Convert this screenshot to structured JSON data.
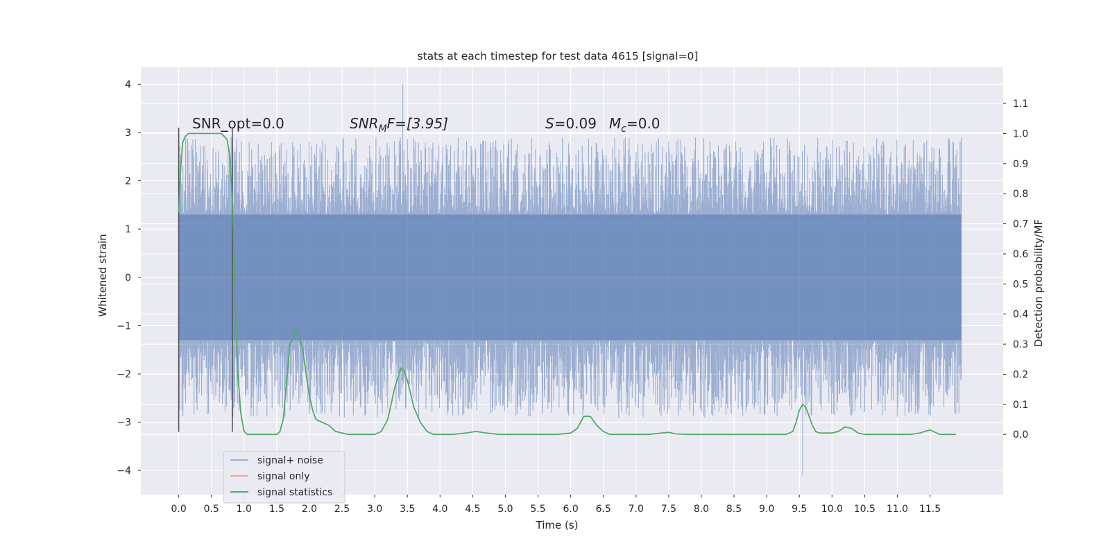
{
  "chart_data": {
    "type": "line",
    "title": "stats at each timestep for test data 4615 [signal=0]",
    "xlabel": "Time (s)",
    "ylabel": "Whitened strain",
    "y2label": "Detection probability/MF",
    "xlim": [
      -0.58,
      12.62
    ],
    "ylim": [
      -4.5,
      4.35
    ],
    "y2lim": [
      -0.2,
      1.22
    ],
    "xticks": [
      0.0,
      0.5,
      1.0,
      1.5,
      2.0,
      2.5,
      3.0,
      3.5,
      4.0,
      4.5,
      5.0,
      5.5,
      6.0,
      6.5,
      7.0,
      7.5,
      8.0,
      8.5,
      9.0,
      9.5,
      10.0,
      10.5,
      11.0,
      11.5
    ],
    "xtick_labels": [
      "0.0",
      "0.5",
      "1.0",
      "1.5",
      "2.0",
      "2.5",
      "3.0",
      "3.5",
      "4.0",
      "4.5",
      "5.0",
      "5.5",
      "6.0",
      "6.5",
      "7.0",
      "7.5",
      "8.0",
      "8.5",
      "9.0",
      "9.5",
      "10.0",
      "10.5",
      "11.0",
      "11.5"
    ],
    "yticks": [
      -4,
      -3,
      -2,
      -1,
      0,
      1,
      2,
      3,
      4
    ],
    "ytick_labels": [
      "−4",
      "−3",
      "−2",
      "−1",
      "0",
      "1",
      "2",
      "3",
      "4"
    ],
    "y2ticks": [
      0.0,
      0.1,
      0.2,
      0.3,
      0.4,
      0.5,
      0.6,
      0.7,
      0.8,
      0.9,
      1.0,
      1.1
    ],
    "y2tick_labels": [
      "0.0",
      "0.1",
      "0.2",
      "0.3",
      "0.4",
      "0.5",
      "0.6",
      "0.7",
      "0.8",
      "0.9",
      "1.0",
      "1.1"
    ],
    "grid": true,
    "legend_position": "lower-left",
    "colors": {
      "background": "#eaeaf2",
      "signal_noise": "#4c72b0",
      "signal_only": "#dd8452",
      "statistics": "#55a868",
      "marker": "#555555"
    },
    "annotations": {
      "snr_opt": "SNR_opt=0.0",
      "snr_mf": "SNR",
      "snr_mf_sub": "M",
      "snr_mf_tail": "F=[3.95]",
      "s_label": "S",
      "s_value": "=0.09",
      "mc_label": "M",
      "mc_sub": "c",
      "mc_value": "=0.0"
    },
    "series": [
      {
        "name": "signal+ noise",
        "kind": "noise",
        "t_start": 0.0,
        "t_end": 11.98,
        "core_amplitude": 1.3,
        "typical_max": 2.6,
        "typical_min": -2.6,
        "max_peak": 4.0,
        "min_peak": -4.1
      },
      {
        "name": "signal only",
        "kind": "flat",
        "t_start": 0.0,
        "t_end": 11.98,
        "value": 0.0
      },
      {
        "name": "signal statistics",
        "kind": "line",
        "axis": "right",
        "x": [
          0.0,
          0.03,
          0.06,
          0.1,
          0.15,
          0.2,
          0.3,
          0.4,
          0.5,
          0.6,
          0.65,
          0.7,
          0.74,
          0.78,
          0.82,
          0.86,
          0.9,
          0.95,
          1.0,
          1.05,
          1.1,
          1.2,
          1.3,
          1.4,
          1.5,
          1.55,
          1.6,
          1.65,
          1.7,
          1.75,
          1.8,
          1.85,
          1.9,
          1.95,
          2.0,
          2.05,
          2.1,
          2.2,
          2.3,
          2.4,
          2.5,
          2.6,
          2.7,
          2.8,
          2.9,
          3.0,
          3.1,
          3.2,
          3.3,
          3.4,
          3.45,
          3.5,
          3.6,
          3.7,
          3.8,
          3.9,
          4.0,
          4.2,
          4.4,
          4.55,
          4.7,
          4.9,
          5.2,
          5.5,
          5.8,
          6.0,
          6.1,
          6.2,
          6.3,
          6.4,
          6.5,
          6.6,
          6.8,
          7.0,
          7.2,
          7.4,
          7.5,
          7.6,
          7.8,
          8.0,
          8.5,
          9.0,
          9.3,
          9.4,
          9.45,
          9.5,
          9.55,
          9.6,
          9.65,
          9.7,
          9.75,
          9.8,
          9.9,
          10.0,
          10.1,
          10.2,
          10.3,
          10.4,
          10.5,
          10.6,
          10.8,
          11.0,
          11.2,
          11.35,
          11.45,
          11.5,
          11.55,
          11.65,
          11.8,
          11.9
        ],
        "y": [
          0.74,
          0.88,
          0.97,
          0.99,
          1.0,
          1.0,
          1.0,
          1.0,
          1.0,
          1.0,
          1.0,
          0.99,
          0.98,
          0.93,
          0.78,
          0.5,
          0.22,
          0.07,
          0.01,
          0.0,
          0.0,
          0.0,
          0.0,
          0.0,
          0.0,
          0.01,
          0.05,
          0.17,
          0.3,
          0.32,
          0.35,
          0.32,
          0.28,
          0.2,
          0.13,
          0.08,
          0.05,
          0.04,
          0.03,
          0.01,
          0.005,
          0.0,
          0.0,
          0.0,
          0.0,
          0.0,
          0.01,
          0.05,
          0.15,
          0.22,
          0.21,
          0.18,
          0.09,
          0.04,
          0.01,
          0.0,
          0.0,
          0.0,
          0.005,
          0.01,
          0.005,
          0.0,
          0.0,
          0.0,
          0.0,
          0.005,
          0.02,
          0.06,
          0.06,
          0.03,
          0.01,
          0.0,
          0.0,
          0.0,
          0.0,
          0.005,
          0.007,
          0.002,
          0.0,
          0.0,
          0.0,
          0.0,
          0.0,
          0.01,
          0.04,
          0.08,
          0.1,
          0.09,
          0.06,
          0.03,
          0.01,
          0.005,
          0.005,
          0.005,
          0.01,
          0.025,
          0.02,
          0.005,
          0.0,
          0.0,
          0.0,
          0.0,
          0.0,
          0.005,
          0.012,
          0.015,
          0.01,
          0.0,
          0.0,
          0.0
        ]
      }
    ],
    "markers": [
      {
        "x": 0.0,
        "y_range": [
          -3.2,
          3.1
        ]
      },
      {
        "x": 0.82,
        "y_range": [
          -3.2,
          3.1
        ]
      }
    ]
  }
}
